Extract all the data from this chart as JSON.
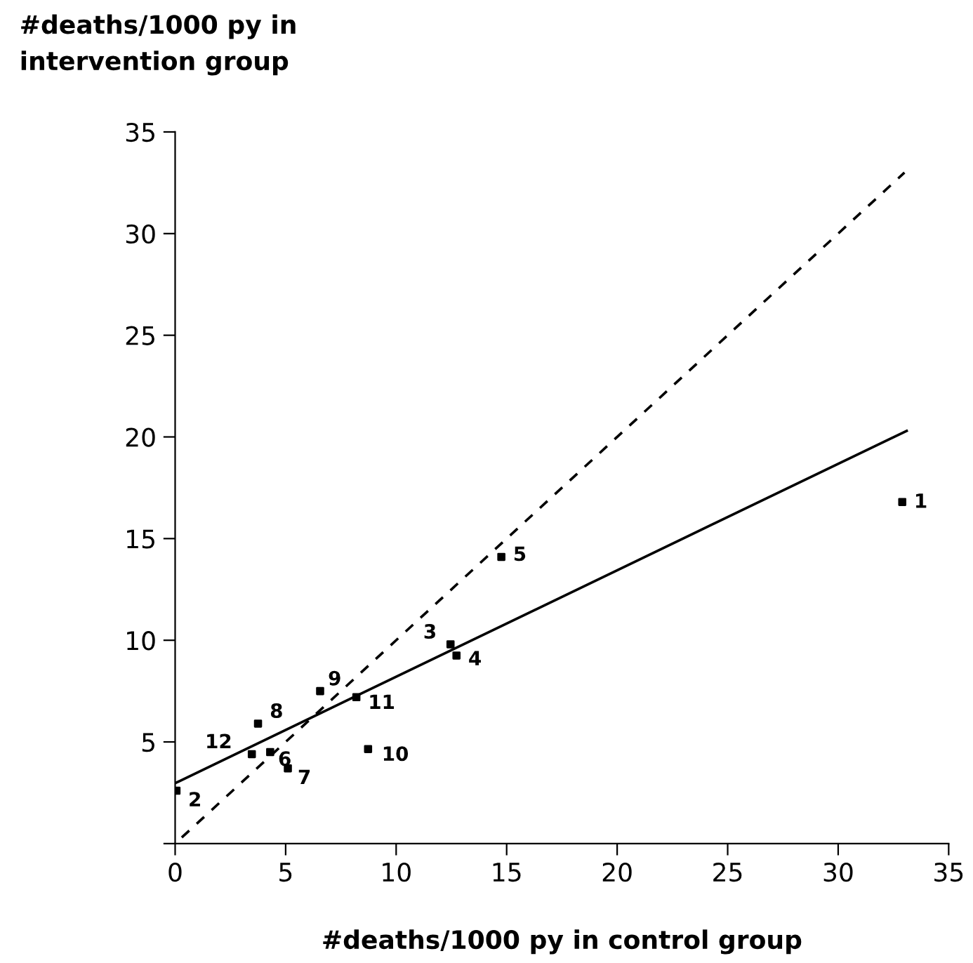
{
  "chart_data": {
    "type": "scatter",
    "xlabel": "#deaths/1000 py in control group",
    "ylabel": "#deaths/1000 py in\nintervention group",
    "xlim": [
      0,
      35
    ],
    "ylim": [
      0,
      35
    ],
    "xticks": [
      0,
      5,
      10,
      15,
      20,
      25,
      30,
      35
    ],
    "yticks": [
      {
        "value": 0,
        "label": null
      },
      5,
      10,
      15,
      20,
      25,
      30,
      35
    ],
    "grid": false,
    "legend": false,
    "series": [
      {
        "color": "#000000",
        "marker": "square",
        "x": [
          32.9,
          0.06,
          12.46,
          12.73,
          14.76,
          4.3,
          5.1,
          3.75,
          6.56,
          8.73,
          8.2,
          3.47
        ],
        "values": [
          16.8,
          2.6,
          9.8,
          9.25,
          14.1,
          4.5,
          3.7,
          5.9,
          7.5,
          4.65,
          7.2,
          4.4
        ]
      },
      {
        "type": "line",
        "color": "#000000",
        "line_style": "solid",
        "marker": "none",
        "x": [
          0,
          33.1
        ],
        "values": [
          2.97,
          20.3
        ]
      },
      {
        "type": "line",
        "color": "#000000",
        "line_style": "dashed",
        "marker": "none",
        "x": [
          0.3,
          33
        ],
        "values": [
          0.3,
          33
        ]
      }
    ],
    "annotations": [
      {
        "text": "1",
        "x": 32.9,
        "y": 16.8
      },
      {
        "text": "2",
        "x": 0.06,
        "y": 2.6
      },
      {
        "text": "3",
        "x": 12.46,
        "y": 9.8
      },
      {
        "text": "4",
        "x": 12.73,
        "y": 9.25
      },
      {
        "text": "5",
        "x": 14.76,
        "y": 14.1
      },
      {
        "text": "6",
        "x": 4.3,
        "y": 4.5
      },
      {
        "text": "7",
        "x": 5.1,
        "y": 3.7
      },
      {
        "text": "8",
        "x": 3.75,
        "y": 5.9
      },
      {
        "text": "9",
        "x": 6.56,
        "y": 7.5
      },
      {
        "text": "10",
        "x": 8.73,
        "y": 4.65
      },
      {
        "text": "11",
        "x": 8.2,
        "y": 7.2
      },
      {
        "text": "12",
        "x": 3.47,
        "y": 4.4
      }
    ]
  }
}
